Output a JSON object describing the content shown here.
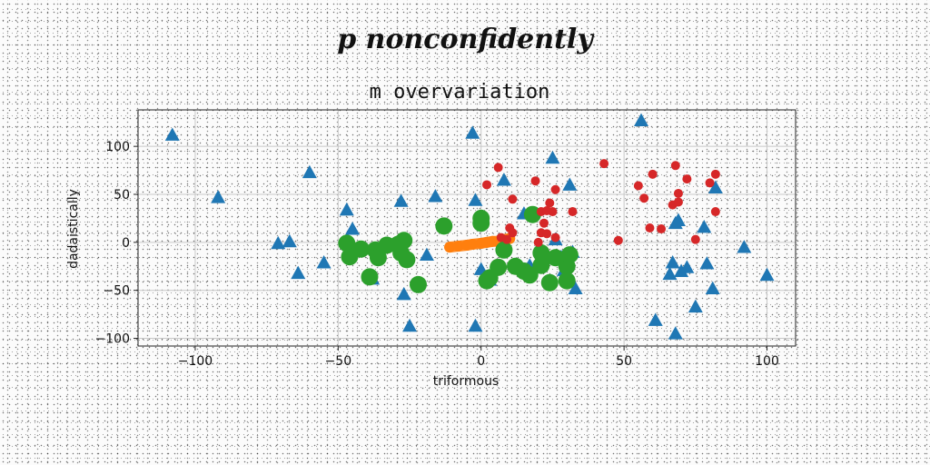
{
  "suptitle": "p nonconfidently",
  "chart_data": {
    "type": "scatter",
    "title": "m overvariation",
    "xlabel": "triformous",
    "ylabel": "dadaistically",
    "xlim": [
      -120,
      110
    ],
    "ylim": [
      -108,
      138
    ],
    "xticks": [
      -100,
      -50,
      0,
      50,
      100
    ],
    "xtick_labels": [
      "−100",
      "−50",
      "0",
      "50",
      "100"
    ],
    "yticks": [
      -100,
      -50,
      0,
      50,
      100
    ],
    "ytick_labels": [
      "−100",
      "−50",
      "0",
      "50",
      "100"
    ],
    "grid": true,
    "series": [
      {
        "color": "#1f77b4",
        "marker": "triangle",
        "points": [
          [
            -108,
            112
          ],
          [
            -92,
            47
          ],
          [
            -60,
            73
          ],
          [
            -71,
            -1
          ],
          [
            -67,
            1
          ],
          [
            -64,
            -32
          ],
          [
            -55,
            -21
          ],
          [
            -47,
            34
          ],
          [
            -45,
            14
          ],
          [
            -38,
            -38
          ],
          [
            -28,
            43
          ],
          [
            -27,
            -54
          ],
          [
            -25,
            -87
          ],
          [
            -19,
            -13
          ],
          [
            -16,
            48
          ],
          [
            -3,
            114
          ],
          [
            -2,
            44
          ],
          [
            -2,
            -87
          ],
          [
            0,
            -28
          ],
          [
            3,
            -39
          ],
          [
            8,
            65
          ],
          [
            15,
            30
          ],
          [
            15,
            -28
          ],
          [
            17,
            -24
          ],
          [
            25,
            88
          ],
          [
            26,
            3
          ],
          [
            28,
            -15
          ],
          [
            29,
            -29
          ],
          [
            31,
            60
          ],
          [
            32,
            -10
          ],
          [
            33,
            -48
          ],
          [
            56,
            127
          ],
          [
            61,
            -81
          ],
          [
            66,
            -33
          ],
          [
            67,
            -21
          ],
          [
            68,
            -95
          ],
          [
            68,
            20
          ],
          [
            69,
            23
          ],
          [
            70,
            -30
          ],
          [
            72,
            -26
          ],
          [
            75,
            -67
          ],
          [
            78,
            16
          ],
          [
            79,
            -22
          ],
          [
            81,
            -48
          ],
          [
            82,
            57
          ],
          [
            92,
            -5
          ],
          [
            100,
            -34
          ]
        ]
      },
      {
        "color": "#ff7f0e",
        "marker": "line",
        "points": [
          [
            -11,
            -5
          ],
          [
            -8,
            -4
          ],
          [
            -5,
            -3
          ],
          [
            -3,
            -2
          ],
          [
            0,
            -1
          ],
          [
            2,
            0
          ],
          [
            4,
            1
          ],
          [
            6,
            1
          ],
          [
            8,
            3
          ],
          [
            10,
            4
          ]
        ]
      },
      {
        "color": "#2ca02c",
        "marker": "circle",
        "points": [
          [
            -47,
            -1
          ],
          [
            -46,
            -15
          ],
          [
            -42,
            -7
          ],
          [
            -39,
            -36
          ],
          [
            -37,
            -8
          ],
          [
            -36,
            -16
          ],
          [
            -33,
            -3
          ],
          [
            -29,
            -2
          ],
          [
            -28,
            -11
          ],
          [
            -27,
            2
          ],
          [
            -26,
            -18
          ],
          [
            -22,
            -44
          ],
          [
            -13,
            17
          ],
          [
            0,
            25
          ],
          [
            0,
            20
          ],
          [
            2,
            -40
          ],
          [
            3,
            -37
          ],
          [
            6,
            -26
          ],
          [
            8,
            -8
          ],
          [
            12,
            -25
          ],
          [
            15,
            -30
          ],
          [
            17,
            -34
          ],
          [
            18,
            29
          ],
          [
            21,
            -11
          ],
          [
            21,
            -24
          ],
          [
            24,
            -42
          ],
          [
            26,
            -16
          ],
          [
            30,
            -25
          ],
          [
            30,
            -40
          ],
          [
            31,
            -13
          ]
        ]
      },
      {
        "color": "#d62728",
        "marker": "circle",
        "points": [
          [
            2,
            60
          ],
          [
            6,
            78
          ],
          [
            7,
            5
          ],
          [
            9,
            3
          ],
          [
            10,
            15
          ],
          [
            11,
            10
          ],
          [
            11,
            45
          ],
          [
            19,
            64
          ],
          [
            20,
            0
          ],
          [
            21,
            10
          ],
          [
            21,
            32
          ],
          [
            22,
            20
          ],
          [
            23,
            9
          ],
          [
            23,
            33
          ],
          [
            24,
            41
          ],
          [
            25,
            32
          ],
          [
            26,
            5
          ],
          [
            26,
            55
          ],
          [
            32,
            32
          ],
          [
            43,
            82
          ],
          [
            48,
            2
          ],
          [
            55,
            59
          ],
          [
            57,
            46
          ],
          [
            59,
            15
          ],
          [
            60,
            71
          ],
          [
            63,
            14
          ],
          [
            67,
            39
          ],
          [
            68,
            80
          ],
          [
            69,
            42
          ],
          [
            69,
            51
          ],
          [
            72,
            66
          ],
          [
            75,
            3
          ],
          [
            80,
            62
          ],
          [
            82,
            32
          ],
          [
            82,
            71
          ]
        ]
      }
    ]
  }
}
